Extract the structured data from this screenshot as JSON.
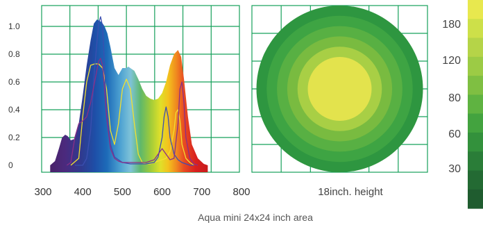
{
  "caption": "Aqua mini 24x24 inch area",
  "chart_data": [
    {
      "type": "area",
      "xlim": [
        300,
        800
      ],
      "ylim": [
        0,
        1.0
      ],
      "x_ticks": [
        300,
        400,
        500,
        600,
        700,
        800
      ],
      "y_ticks": [
        0,
        0.2,
        0.4,
        0.6,
        0.8,
        1.0
      ],
      "y_tick_labels": [
        "0",
        "0.2",
        "0.4",
        "0.6",
        "0.8",
        "1.0"
      ],
      "grid": true,
      "series": [
        {
          "style": "filled-rainbow",
          "x": [
            318,
            330,
            340,
            348,
            356,
            362,
            370,
            380,
            390,
            400,
            410,
            420,
            428,
            436,
            442,
            448,
            455,
            462,
            470,
            480,
            490,
            500,
            510,
            515,
            520,
            530,
            540,
            550,
            560,
            570,
            580,
            590,
            600,
            610,
            620,
            630,
            640,
            648,
            655,
            665,
            675,
            690,
            705,
            715
          ],
          "y": [
            0,
            0.03,
            0.12,
            0.2,
            0.22,
            0.21,
            0.18,
            0.19,
            0.3,
            0.5,
            0.72,
            0.9,
            1.02,
            1.05,
            1.04,
            1.03,
            1.0,
            0.95,
            0.85,
            0.7,
            0.65,
            0.7,
            0.7,
            0.71,
            0.7,
            0.68,
            0.62,
            0.55,
            0.5,
            0.48,
            0.47,
            0.48,
            0.52,
            0.6,
            0.72,
            0.8,
            0.83,
            0.78,
            0.62,
            0.35,
            0.15,
            0.05,
            0.01,
            0
          ]
        },
        {
          "style": "line",
          "color": "#f2e030",
          "x": [
            370,
            390,
            400,
            410,
            420,
            430,
            440,
            450,
            460,
            470,
            480,
            490,
            500,
            510,
            520,
            530,
            540,
            550,
            560,
            570,
            580,
            590,
            600,
            610,
            620,
            630,
            635,
            640,
            645,
            650,
            660,
            670,
            680
          ],
          "y": [
            0,
            0.05,
            0.35,
            0.6,
            0.72,
            0.73,
            0.73,
            0.7,
            0.55,
            0.25,
            0.15,
            0.3,
            0.55,
            0.62,
            0.55,
            0.3,
            0.08,
            0.02,
            0.01,
            0.01,
            0.02,
            0.03,
            0.04,
            0.05,
            0.1,
            0.25,
            0.38,
            0.4,
            0.32,
            0.15,
            0.05,
            0.02,
            0
          ]
        },
        {
          "style": "line",
          "color": "#3b4fb0",
          "x": [
            380,
            400,
            410,
            420,
            430,
            440,
            445,
            450,
            455,
            460,
            470,
            480,
            500,
            520,
            540,
            560,
            580,
            590,
            600,
            605,
            610,
            615,
            620,
            630,
            640,
            650,
            660,
            670,
            680
          ],
          "y": [
            0,
            0,
            0.05,
            0.25,
            0.7,
            1.02,
            1.07,
            1.0,
            0.7,
            0.4,
            0.15,
            0.06,
            0.02,
            0.01,
            0.01,
            0.01,
            0.02,
            0.06,
            0.2,
            0.35,
            0.42,
            0.35,
            0.2,
            0.08,
            0.04,
            0.02,
            0.01,
            0,
            0
          ]
        },
        {
          "style": "line",
          "color": "#8b2f86",
          "x": [
            360,
            370,
            380,
            390,
            400,
            410,
            420,
            430,
            440,
            445,
            450,
            455,
            460,
            470,
            480,
            490,
            500,
            520,
            540,
            560,
            580,
            590,
            600,
            610,
            620,
            630,
            640,
            645,
            650,
            655,
            660,
            670,
            680,
            690
          ],
          "y": [
            0,
            0.02,
            0.2,
            0.3,
            0.32,
            0.35,
            0.45,
            0.6,
            0.75,
            0.77,
            0.72,
            0.55,
            0.35,
            0.12,
            0.05,
            0.03,
            0.02,
            0.02,
            0.02,
            0.02,
            0.04,
            0.08,
            0.12,
            0.08,
            0.04,
            0.05,
            0.3,
            0.55,
            0.6,
            0.45,
            0.2,
            0.05,
            0.01,
            0
          ]
        }
      ]
    },
    {
      "type": "heatmap",
      "xlabel": "18inch. height",
      "rings": [
        {
          "ring": 1,
          "color": "#2e9640"
        },
        {
          "ring": 2,
          "color": "#3ea443"
        },
        {
          "ring": 3,
          "color": "#58b043"
        },
        {
          "ring": 4,
          "color": "#79bb40"
        },
        {
          "ring": 5,
          "color": "#a8cf45"
        },
        {
          "ring": 6,
          "color": "#e3e34d"
        }
      ],
      "colorbar": {
        "labels": [
          "180",
          "120",
          "80",
          "60",
          "30"
        ],
        "colors": [
          "#e8e84e",
          "#cde049",
          "#b5d448",
          "#9ccb45",
          "#7fbf42",
          "#5fb341",
          "#43a33f",
          "#33913c",
          "#2a7d38",
          "#236a33",
          "#1f5c2f"
        ]
      }
    }
  ]
}
